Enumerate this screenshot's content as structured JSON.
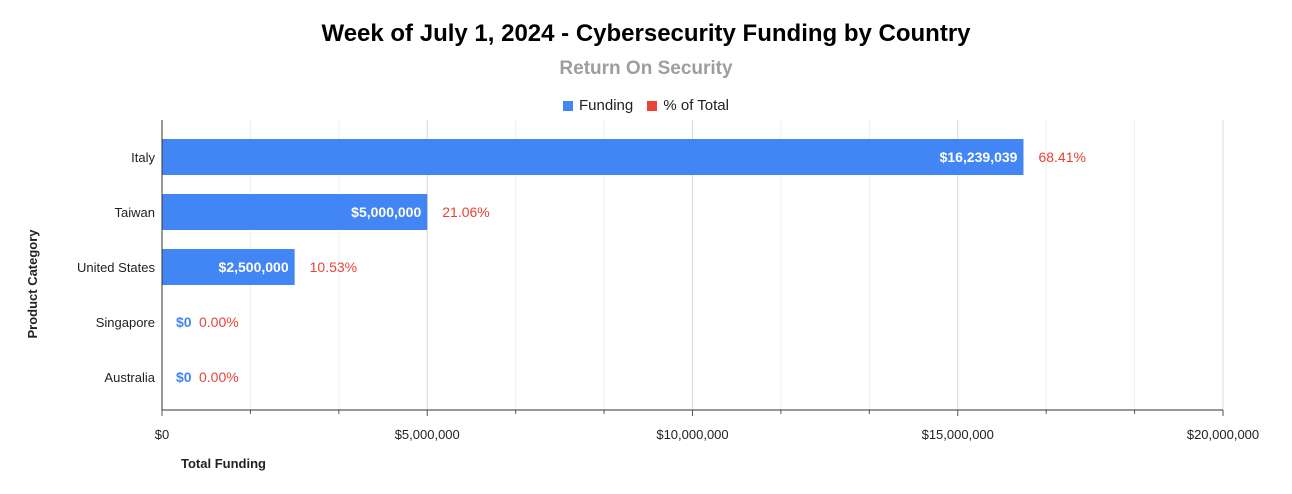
{
  "chart_data": {
    "type": "bar",
    "orientation": "horizontal",
    "title": "Week of July 1, 2024 - Cybersecurity Funding by Country",
    "subtitle": "Return On Security",
    "xlabel": "Total Funding",
    "ylabel": "Product Category",
    "xlim": [
      0,
      20000000
    ],
    "x_ticks": [
      0,
      5000000,
      10000000,
      15000000,
      20000000
    ],
    "x_tick_labels": [
      "$0",
      "$5,000,000",
      "$10,000,000",
      "$15,000,000",
      "$20,000,000"
    ],
    "grid": true,
    "legend_position": "top-center",
    "categories": [
      "Italy",
      "Taiwan",
      "United States",
      "Singapore",
      "Australia"
    ],
    "series": [
      {
        "name": "Funding",
        "color": "#4285f4",
        "values": [
          16239039,
          5000000,
          2500000,
          0,
          0
        ],
        "labels": [
          "$16,239,039",
          "$5,000,000",
          "$2,500,000",
          "$0",
          "$0"
        ]
      },
      {
        "name": "% of Total",
        "color": "#ea4335",
        "values": [
          68.41,
          21.06,
          10.53,
          0.0,
          0.0
        ],
        "labels": [
          "68.41%",
          "21.06%",
          "10.53%",
          "0.00%",
          "0.00%"
        ]
      }
    ]
  }
}
